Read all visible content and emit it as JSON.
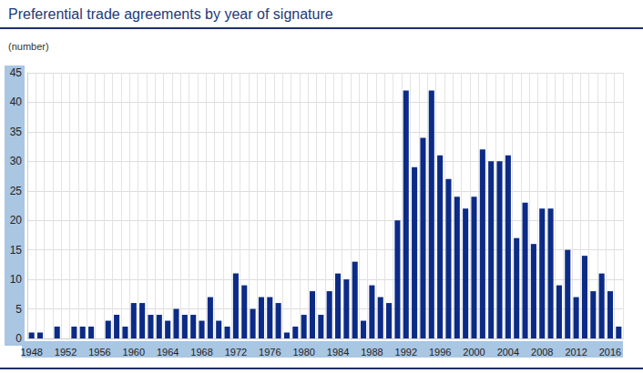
{
  "chart_data": {
    "type": "bar",
    "title": "Preferential trade agreements by year of signature",
    "subtitle": "(number)",
    "categories": [
      "1948",
      null,
      null,
      null,
      "1952",
      null,
      null,
      null,
      "1956",
      null,
      null,
      null,
      "1960",
      null,
      null,
      null,
      "1964",
      null,
      null,
      null,
      "1968",
      null,
      null,
      null,
      "1972",
      null,
      null,
      null,
      "1976",
      null,
      null,
      null,
      "1980",
      null,
      null,
      null,
      "1984",
      null,
      null,
      null,
      "1988",
      null,
      null,
      null,
      "1992",
      null,
      null,
      null,
      "1996",
      null,
      null,
      null,
      "2000",
      null,
      null,
      null,
      "2004",
      null,
      null,
      null,
      "2008",
      null,
      null,
      null,
      "2012",
      null,
      null,
      null,
      "2016",
      null
    ],
    "values": [
      1,
      1,
      0,
      2,
      0,
      2,
      2,
      2,
      0,
      3,
      4,
      2,
      6,
      6,
      4,
      4,
      3,
      5,
      4,
      4,
      3,
      7,
      3,
      2,
      11,
      9,
      5,
      7,
      7,
      6,
      1,
      2,
      4,
      8,
      4,
      8,
      11,
      10,
      13,
      3,
      9,
      7,
      6,
      20,
      42,
      29,
      34,
      42,
      31,
      27,
      24,
      22,
      24,
      32,
      30,
      30,
      31,
      17,
      23,
      16,
      22,
      22,
      9,
      15,
      7,
      14,
      8,
      11,
      8,
      2
    ],
    "color": "#0b2b86",
    "ylim": [
      0,
      45
    ],
    "yticks": [
      0,
      5,
      10,
      15,
      20,
      25,
      30,
      35,
      40,
      45
    ],
    "grid": true
  }
}
